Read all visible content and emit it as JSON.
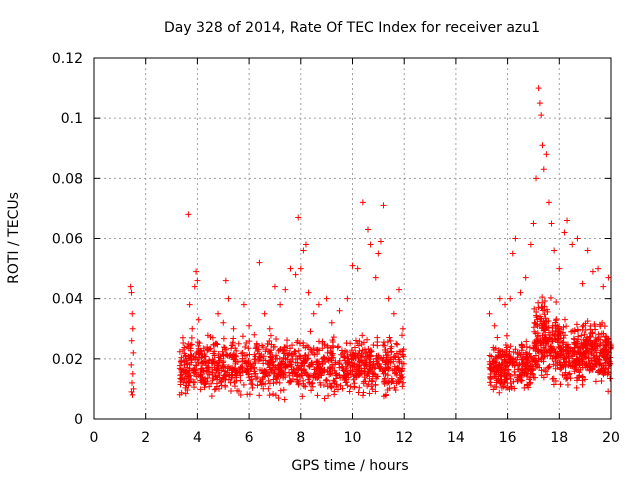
{
  "chart_data": {
    "type": "scatter",
    "title": "Day 328 of 2014, Rate Of TEC Index for receiver azu1",
    "xlabel": "GPS time / hours",
    "ylabel": "ROTI / TECUs",
    "xlim": [
      0,
      20
    ],
    "ylim": [
      0,
      0.12
    ],
    "xticks": [
      0,
      2,
      4,
      6,
      8,
      10,
      12,
      14,
      16,
      18,
      20
    ],
    "xtick_labels": [
      "0",
      "2",
      "4",
      "6",
      "8",
      "10",
      "12",
      "14",
      "16",
      "18",
      "20"
    ],
    "yticks": [
      0,
      0.02,
      0.04,
      0.06,
      0.08,
      0.1,
      0.12
    ],
    "ytick_labels": [
      "0",
      "0.02",
      "0.04",
      "0.06",
      "0.08",
      "0.1",
      "0.12"
    ],
    "grid": true,
    "marker": "+",
    "color": "#ff0000",
    "series": [
      {
        "name": "ROTI",
        "points": [
          [
            1.42,
            0.044
          ],
          [
            1.45,
            0.042
          ],
          [
            1.48,
            0.035
          ],
          [
            1.5,
            0.03
          ],
          [
            1.46,
            0.026
          ],
          [
            1.52,
            0.022
          ],
          [
            1.44,
            0.018
          ],
          [
            1.5,
            0.015
          ],
          [
            1.47,
            0.012
          ],
          [
            1.53,
            0.01
          ],
          [
            1.45,
            0.009
          ],
          [
            1.49,
            0.008
          ],
          [
            3.4,
            0.013
          ],
          [
            3.5,
            0.018
          ],
          [
            3.6,
            0.024
          ],
          [
            3.65,
            0.068
          ],
          [
            3.7,
            0.038
          ],
          [
            3.8,
            0.03
          ],
          [
            3.9,
            0.044
          ],
          [
            3.95,
            0.049
          ],
          [
            4.0,
            0.046
          ],
          [
            4.05,
            0.033
          ],
          [
            4.2,
            0.021
          ],
          [
            4.4,
            0.017
          ],
          [
            4.6,
            0.027
          ],
          [
            4.8,
            0.035
          ],
          [
            5.0,
            0.032
          ],
          [
            5.1,
            0.046
          ],
          [
            5.2,
            0.04
          ],
          [
            5.4,
            0.03
          ],
          [
            5.6,
            0.025
          ],
          [
            5.8,
            0.038
          ],
          [
            6.0,
            0.031
          ],
          [
            6.2,
            0.028
          ],
          [
            6.4,
            0.052
          ],
          [
            6.6,
            0.035
          ],
          [
            6.8,
            0.03
          ],
          [
            7.0,
            0.044
          ],
          [
            7.2,
            0.038
          ],
          [
            7.4,
            0.043
          ],
          [
            7.6,
            0.05
          ],
          [
            7.8,
            0.048
          ],
          [
            7.9,
            0.067
          ],
          [
            8.0,
            0.05
          ],
          [
            8.1,
            0.056
          ],
          [
            8.2,
            0.058
          ],
          [
            8.3,
            0.042
          ],
          [
            8.5,
            0.035
          ],
          [
            8.7,
            0.038
          ],
          [
            9.0,
            0.04
          ],
          [
            9.2,
            0.032
          ],
          [
            9.5,
            0.036
          ],
          [
            9.8,
            0.04
          ],
          [
            10.0,
            0.051
          ],
          [
            10.2,
            0.05
          ],
          [
            10.4,
            0.072
          ],
          [
            10.6,
            0.063
          ],
          [
            10.7,
            0.058
          ],
          [
            10.9,
            0.047
          ],
          [
            11.0,
            0.055
          ],
          [
            11.1,
            0.059
          ],
          [
            11.2,
            0.071
          ],
          [
            11.4,
            0.04
          ],
          [
            11.6,
            0.035
          ],
          [
            11.8,
            0.043
          ],
          [
            11.95,
            0.03
          ],
          [
            15.3,
            0.035
          ],
          [
            15.5,
            0.031
          ],
          [
            15.7,
            0.04
          ],
          [
            15.9,
            0.038
          ],
          [
            16.1,
            0.04
          ],
          [
            16.2,
            0.055
          ],
          [
            16.3,
            0.06
          ],
          [
            16.5,
            0.042
          ],
          [
            16.7,
            0.047
          ],
          [
            16.9,
            0.058
          ],
          [
            17.0,
            0.065
          ],
          [
            17.1,
            0.08
          ],
          [
            17.2,
            0.11
          ],
          [
            17.25,
            0.105
          ],
          [
            17.3,
            0.101
          ],
          [
            17.35,
            0.091
          ],
          [
            17.4,
            0.083
          ],
          [
            17.5,
            0.088
          ],
          [
            17.6,
            0.072
          ],
          [
            17.7,
            0.065
          ],
          [
            17.8,
            0.056
          ],
          [
            18.0,
            0.05
          ],
          [
            18.2,
            0.062
          ],
          [
            18.3,
            0.066
          ],
          [
            18.5,
            0.058
          ],
          [
            18.7,
            0.06
          ],
          [
            18.9,
            0.045
          ],
          [
            19.1,
            0.056
          ],
          [
            19.3,
            0.049
          ],
          [
            19.5,
            0.05
          ],
          [
            19.7,
            0.044
          ],
          [
            19.9,
            0.047
          ]
        ],
        "clusters": [
          {
            "x_range": [
              3.3,
              12.0
            ],
            "y_range": [
              0.005,
              0.03
            ],
            "count": 1100
          },
          {
            "x_range": [
              15.3,
              17.0
            ],
            "y_range": [
              0.006,
              0.028
            ],
            "count": 260
          },
          {
            "x_range": [
              17.0,
              18.0
            ],
            "y_range": [
              0.006,
              0.045
            ],
            "count": 200
          },
          {
            "x_range": [
              18.0,
              20.0
            ],
            "y_range": [
              0.008,
              0.035
            ],
            "count": 380
          }
        ]
      }
    ]
  }
}
